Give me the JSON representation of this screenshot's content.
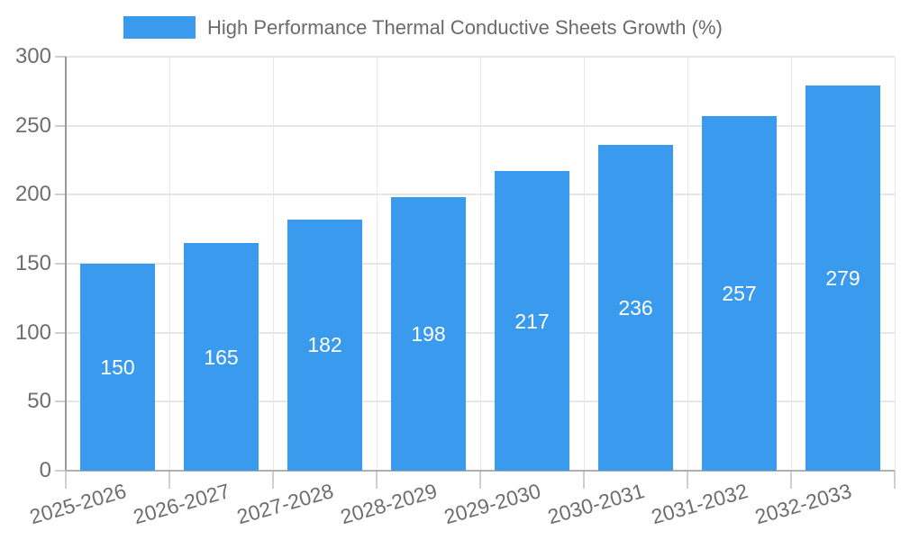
{
  "chart_data": {
    "type": "bar",
    "title": "High Performance Thermal Conductive Sheets Growth (%)",
    "legend": {
      "label": "High Performance Thermal Conductive Sheets Growth (%)",
      "position": "top"
    },
    "categories": [
      "2025-2026",
      "2026-2027",
      "2027-2028",
      "2028-2029",
      "2029-2030",
      "2030-2031",
      "2031-2032",
      "2032-2033"
    ],
    "values": [
      150,
      165,
      182,
      198,
      217,
      236,
      257,
      279
    ],
    "xlabel": "",
    "ylabel": "",
    "ylim": [
      0,
      300
    ],
    "yticks": [
      0,
      50,
      100,
      150,
      200,
      250,
      300
    ],
    "grid": true,
    "value_labels": "inside-center",
    "colors": {
      "bar": "#3a9bee",
      "value_label_text": "#ffffff",
      "tick_text": "#6e6e6e",
      "legend_text": "#6b6b6b",
      "gridline": "#e6e6e6",
      "vertical_gridline": "#e8e8e8",
      "tick_mark": "#cfcfcf",
      "y_axis_line": "#999999",
      "x_axis_line": "#b0b0b0",
      "background": "#ffffff"
    }
  }
}
